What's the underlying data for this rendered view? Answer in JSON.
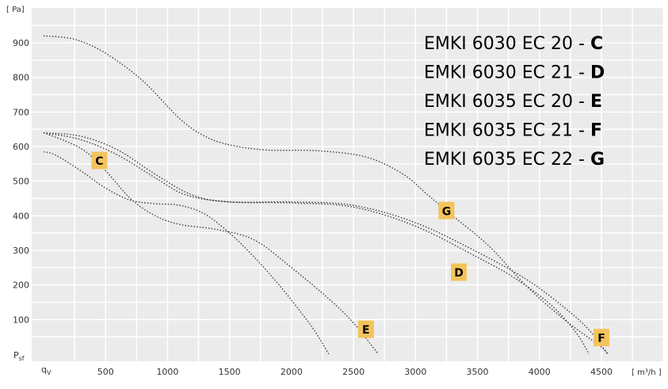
{
  "chart_data": {
    "type": "line",
    "y_unit": "[ Pa]",
    "x_unit": "[ m³/h ]",
    "y_axis_symbol": "Psf",
    "x_axis_symbol": "qV",
    "xlim": [
      0,
      5200
    ],
    "ylim": [
      0,
      1000
    ],
    "x_ticks": [
      500,
      1000,
      1500,
      2000,
      2500,
      3000,
      3500,
      4000,
      4500
    ],
    "y_ticks": [
      100,
      200,
      300,
      400,
      500,
      600,
      700,
      800,
      900
    ],
    "x_tick_labels": [
      "500",
      "1000",
      "1500",
      "2000",
      "2500",
      "3000",
      "3500",
      "4000",
      "4500"
    ],
    "y_tick_labels": [
      "100",
      "200",
      "300",
      "400",
      "500",
      "600",
      "700",
      "800",
      "900"
    ],
    "grid": true,
    "series": [
      {
        "name": "C",
        "points": [
          [
            0,
            585
          ],
          [
            100,
            575
          ],
          [
            300,
            530
          ],
          [
            500,
            480
          ],
          [
            700,
            445
          ],
          [
            900,
            435
          ],
          [
            1100,
            430
          ],
          [
            1300,
            405
          ],
          [
            1500,
            350
          ],
          [
            1700,
            280
          ],
          [
            1900,
            200
          ],
          [
            2100,
            110
          ],
          [
            2200,
            60
          ],
          [
            2300,
            0
          ]
        ]
      },
      {
        "name": "D",
        "points": [
          [
            0,
            640
          ],
          [
            300,
            620
          ],
          [
            600,
            575
          ],
          [
            900,
            510
          ],
          [
            1150,
            460
          ],
          [
            1500,
            440
          ],
          [
            2000,
            437
          ],
          [
            2500,
            425
          ],
          [
            3000,
            370
          ],
          [
            3500,
            280
          ],
          [
            3800,
            220
          ],
          [
            4100,
            140
          ],
          [
            4300,
            60
          ],
          [
            4400,
            0
          ]
        ]
      },
      {
        "name": "E",
        "points": [
          [
            0,
            640
          ],
          [
            300,
            595
          ],
          [
            500,
            530
          ],
          [
            700,
            450
          ],
          [
            900,
            400
          ],
          [
            1100,
            375
          ],
          [
            1400,
            360
          ],
          [
            1700,
            330
          ],
          [
            2000,
            250
          ],
          [
            2300,
            160
          ],
          [
            2500,
            90
          ],
          [
            2700,
            0
          ]
        ]
      },
      {
        "name": "F",
        "points": [
          [
            0,
            640
          ],
          [
            300,
            630
          ],
          [
            600,
            590
          ],
          [
            900,
            520
          ],
          [
            1200,
            460
          ],
          [
            1500,
            440
          ],
          [
            2000,
            440
          ],
          [
            2500,
            430
          ],
          [
            3000,
            380
          ],
          [
            3500,
            295
          ],
          [
            3900,
            215
          ],
          [
            4200,
            135
          ],
          [
            4400,
            70
          ],
          [
            4550,
            0
          ]
        ]
      },
      {
        "name": "G",
        "points": [
          [
            0,
            920
          ],
          [
            250,
            910
          ],
          [
            500,
            870
          ],
          [
            800,
            790
          ],
          [
            1100,
            680
          ],
          [
            1300,
            630
          ],
          [
            1500,
            605
          ],
          [
            1800,
            590
          ],
          [
            2200,
            588
          ],
          [
            2600,
            570
          ],
          [
            2900,
            520
          ],
          [
            3100,
            460
          ],
          [
            3300,
            400
          ],
          [
            3600,
            310
          ],
          [
            3900,
            195
          ],
          [
            4200,
            100
          ],
          [
            4500,
            20
          ],
          [
            4550,
            0
          ]
        ]
      }
    ],
    "point_labels": [
      {
        "text": "C",
        "x": 450,
        "y": 560
      },
      {
        "text": "G",
        "x": 3250,
        "y": 415
      },
      {
        "text": "D",
        "x": 3350,
        "y": 237
      },
      {
        "text": "E",
        "x": 2600,
        "y": 72
      },
      {
        "text": "F",
        "x": 4500,
        "y": 48
      }
    ],
    "legend": {
      "placement": "top-right",
      "entries": [
        {
          "model": "EMKI 6030 EC 20 -",
          "letter": "C"
        },
        {
          "model": "EMKI 6030 EC 21 -",
          "letter": "D"
        },
        {
          "model": "EMKI 6035 EC 20 -",
          "letter": "E"
        },
        {
          "model": "EMKI 6035 EC 21 -",
          "letter": "F"
        },
        {
          "model": "EMKI 6035 EC 22 -",
          "letter": "G"
        }
      ]
    },
    "colors": {
      "background": "#ebebeb",
      "grid": "#ffffff",
      "curve": "#333333",
      "label_badge": "#f3c45b",
      "text": "#000000"
    }
  }
}
